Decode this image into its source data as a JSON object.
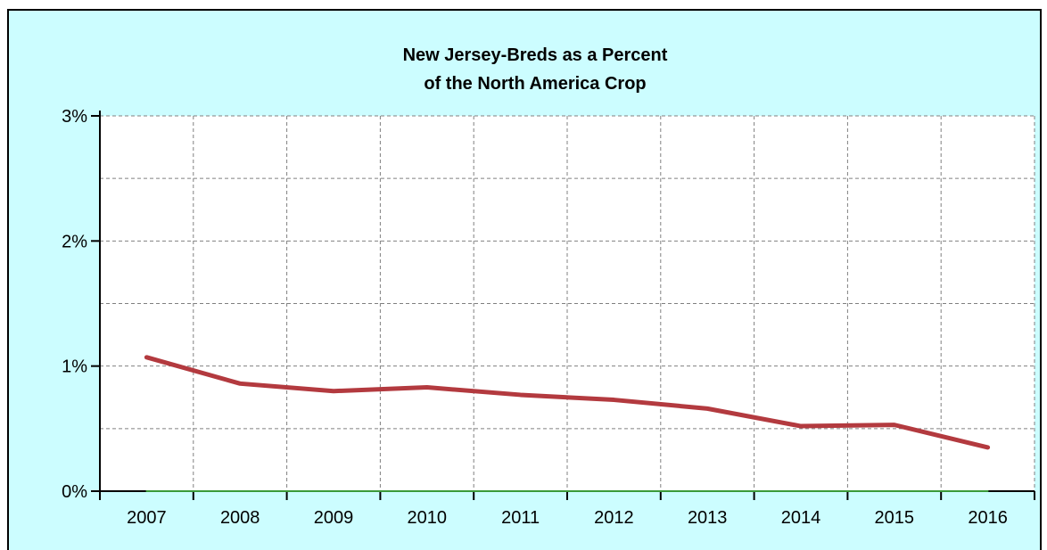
{
  "chart_data": {
    "type": "line",
    "title": [
      "New Jersey-Breds as a Percent",
      "of the North America Crop"
    ],
    "categories": [
      "2007",
      "2008",
      "2009",
      "2010",
      "2011",
      "2012",
      "2013",
      "2014",
      "2015",
      "2016"
    ],
    "series": [
      {
        "values": [
          1.07,
          0.86,
          0.8,
          0.83,
          0.77,
          0.73,
          0.66,
          0.52,
          0.53,
          0.35
        ],
        "color": "#b33a3f"
      },
      {
        "values": [
          0,
          0,
          0,
          0,
          0,
          0,
          0,
          0,
          0,
          0
        ],
        "color": "#3a9a3a"
      }
    ],
    "ylim": [
      0,
      3
    ],
    "yticks": [
      0,
      1,
      2,
      3
    ],
    "ytick_labels": [
      "0%",
      "1%",
      "2%",
      "3%"
    ],
    "grid": true,
    "colors": {
      "background": "#ccfdff",
      "plot_background": "#ffffff",
      "grid": "#808080",
      "axis": "#000000"
    }
  }
}
